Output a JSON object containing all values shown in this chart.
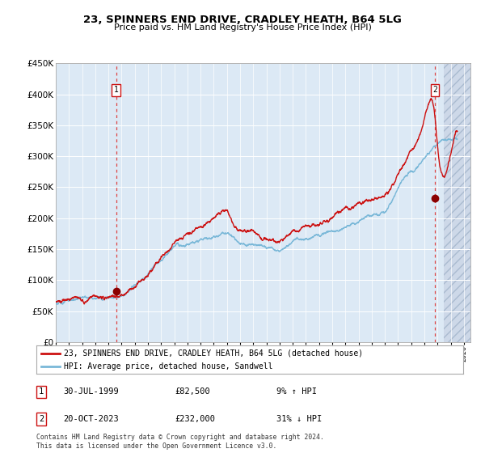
{
  "title": "23, SPINNERS END DRIVE, CRADLEY HEATH, B64 5LG",
  "subtitle": "Price paid vs. HM Land Registry's House Price Index (HPI)",
  "legend_line1": "23, SPINNERS END DRIVE, CRADLEY HEATH, B64 5LG (detached house)",
  "legend_line2": "HPI: Average price, detached house, Sandwell",
  "annotation1_date": "30-JUL-1999",
  "annotation1_price": "£82,500",
  "annotation1_hpi": "9% ↑ HPI",
  "annotation2_date": "20-OCT-2023",
  "annotation2_price": "£232,000",
  "annotation2_hpi": "31% ↓ HPI",
  "footnote": "Contains HM Land Registry data © Crown copyright and database right 2024.\nThis data is licensed under the Open Government Licence v3.0.",
  "hpi_color": "#7ab8d8",
  "price_color": "#cc1111",
  "dot_color": "#8b0000",
  "bg_color": "#dce9f5",
  "grid_color": "#ffffff",
  "vline_color": "#dd4444",
  "ylim": [
    0,
    450000
  ],
  "yticks": [
    0,
    50000,
    100000,
    150000,
    200000,
    250000,
    300000,
    350000,
    400000,
    450000
  ],
  "purchase1_year": 1999.58,
  "purchase1_value": 82500,
  "purchase2_year": 2023.8,
  "purchase2_value": 232000,
  "hpi_key_x": [
    1995,
    1996,
    1997,
    1998,
    1999,
    2000,
    2001,
    2002,
    2003,
    2004,
    2005,
    2006,
    2007,
    2008,
    2009,
    2010,
    2011,
    2012,
    2013,
    2014,
    2015,
    2016,
    2017,
    2018,
    2019,
    2020,
    2021,
    2022,
    2023,
    2024,
    2025,
    2026
  ],
  "hpi_key_y": [
    62000,
    65000,
    68000,
    71000,
    75000,
    85000,
    100000,
    115000,
    135000,
    152000,
    165000,
    175000,
    185000,
    195000,
    175000,
    173000,
    168000,
    162000,
    168000,
    172000,
    180000,
    192000,
    205000,
    212000,
    218000,
    222000,
    252000,
    278000,
    295000,
    320000,
    328000,
    328000
  ],
  "price_key_x": [
    1995,
    1996,
    1997,
    1998,
    1999,
    2000,
    2001,
    2002,
    2003,
    2004,
    2005,
    2006,
    2007,
    2008,
    2009,
    2010,
    2011,
    2012,
    2013,
    2014,
    2015,
    2016,
    2017,
    2018,
    2019,
    2020,
    2021,
    2022,
    2023,
    2023.8,
    2024,
    2025,
    2026
  ],
  "price_key_y": [
    65000,
    67000,
    70000,
    74000,
    78000,
    90000,
    108000,
    125000,
    148000,
    168000,
    182000,
    195000,
    215000,
    225000,
    198000,
    192000,
    188000,
    178000,
    185000,
    190000,
    195000,
    208000,
    218000,
    225000,
    230000,
    238000,
    268000,
    315000,
    363000,
    362000,
    310000,
    300000,
    295000
  ]
}
